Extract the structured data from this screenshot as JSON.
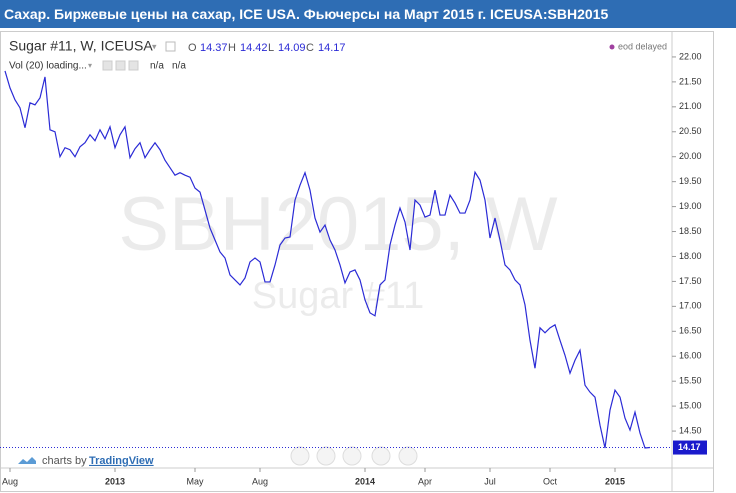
{
  "chart_data": {
    "type": "line",
    "title": "Сахар. Биржевые цены на сахар, ICE USA. Фьючерсы на Март 2015 г. ICEUSA:SBH2015",
    "symbol": "Sugar #11, W, ICEUSA",
    "ohlc": [
      {
        "label": "O",
        "value": 14.37
      },
      {
        "label": "H",
        "value": 14.42
      },
      {
        "label": "L",
        "value": 14.09
      },
      {
        "label": "C",
        "value": 14.17
      }
    ],
    "indicator": {
      "label": "Vol (20) loading...",
      "values": [
        "n/a",
        "n/a"
      ]
    },
    "status": "eod delayed",
    "watermark": "SBH2015, W",
    "watermark_sub": "Sugar #11",
    "branding": {
      "prefix": "charts by",
      "name": "TradingView"
    },
    "color": "#2b2bd6",
    "categories": [
      null,
      "Aug",
      null,
      null,
      null,
      null,
      null,
      null,
      null,
      null,
      null,
      null,
      null,
      null,
      null,
      null,
      null,
      null,
      null,
      null,
      null,
      null,
      "2013",
      null,
      null,
      null,
      null,
      null,
      null,
      null,
      null,
      null,
      null,
      null,
      null,
      null,
      null,
      null,
      "May",
      null,
      null,
      null,
      null,
      null,
      null,
      null,
      null,
      null,
      null,
      null,
      null,
      "Aug",
      null,
      null,
      null,
      null,
      null,
      null,
      null,
      null,
      null,
      null,
      null,
      null,
      null,
      null,
      null,
      null,
      null,
      null,
      null,
      null,
      "2014",
      null,
      null,
      null,
      null,
      null,
      null,
      null,
      null,
      null,
      null,
      null,
      "Apr",
      null,
      null,
      null,
      null,
      null,
      null,
      null,
      null,
      null,
      null,
      null,
      null,
      "Jul",
      null,
      null,
      null,
      null,
      null,
      null,
      null,
      null,
      null,
      null,
      null,
      "Oct",
      null,
      null,
      null,
      null,
      null,
      null,
      null,
      null,
      null,
      null,
      null,
      null,
      "2015",
      null,
      null,
      null,
      null,
      null,
      null,
      null
    ],
    "values": [
      21.72,
      21.38,
      21.14,
      20.98,
      20.58,
      21.08,
      21.04,
      21.18,
      21.6,
      20.54,
      20.5,
      20.0,
      20.18,
      20.14,
      20.0,
      20.2,
      20.28,
      20.44,
      20.32,
      20.54,
      20.36,
      20.6,
      20.18,
      20.44,
      20.6,
      19.98,
      20.16,
      20.28,
      19.98,
      20.14,
      20.28,
      20.14,
      19.93,
      19.78,
      19.63,
      19.68,
      19.63,
      19.59,
      19.37,
      19.29,
      18.93,
      18.57,
      18.33,
      18.09,
      17.97,
      17.63,
      17.53,
      17.43,
      17.57,
      17.89,
      17.97,
      17.89,
      17.49,
      17.49,
      17.83,
      18.23,
      18.37,
      18.39,
      19.13,
      19.43,
      19.68,
      19.33,
      18.77,
      18.49,
      18.63,
      18.33,
      18.13,
      17.83,
      17.47,
      17.69,
      17.73,
      17.53,
      17.13,
      16.87,
      16.81,
      17.43,
      17.53,
      18.23,
      18.63,
      18.97,
      18.69,
      18.13,
      19.13,
      19.03,
      18.79,
      18.83,
      19.33,
      18.83,
      18.83,
      19.23,
      19.07,
      18.87,
      18.87,
      19.13,
      19.69,
      19.53,
      19.13,
      18.37,
      18.77,
      18.33,
      17.83,
      17.73,
      17.53,
      17.43,
      17.03,
      16.32,
      15.76,
      16.57,
      16.47,
      16.57,
      16.63,
      16.32,
      16.02,
      15.66,
      15.92,
      16.12,
      15.42,
      15.28,
      15.18,
      14.62,
      14.16,
      14.92,
      15.32,
      15.18,
      14.76,
      14.52,
      14.88,
      14.46,
      14.16,
      14.17
    ],
    "ylim": [
      13.88,
      22.46
    ],
    "yticks": [
      {
        "value": 14.5,
        "label": "14.50"
      },
      {
        "value": 15,
        "label": "15.00"
      },
      {
        "value": 15.5,
        "label": "15.50"
      },
      {
        "value": 16,
        "label": "16.00"
      },
      {
        "value": 16.5,
        "label": "16.50"
      },
      {
        "value": 17,
        "label": "17.00"
      },
      {
        "value": 17.5,
        "label": "17.50"
      },
      {
        "value": 18,
        "label": "18.00"
      },
      {
        "value": 18.5,
        "label": "18.50"
      },
      {
        "value": 19,
        "label": "19.00"
      },
      {
        "value": 19.5,
        "label": "19.50"
      },
      {
        "value": 20,
        "label": "20.00"
      },
      {
        "value": 20.5,
        "label": "20.50"
      },
      {
        "value": 21,
        "label": "21.00"
      },
      {
        "value": 21.5,
        "label": "21.50"
      },
      {
        "value": 22,
        "label": "22.00"
      }
    ],
    "grid": false
  }
}
